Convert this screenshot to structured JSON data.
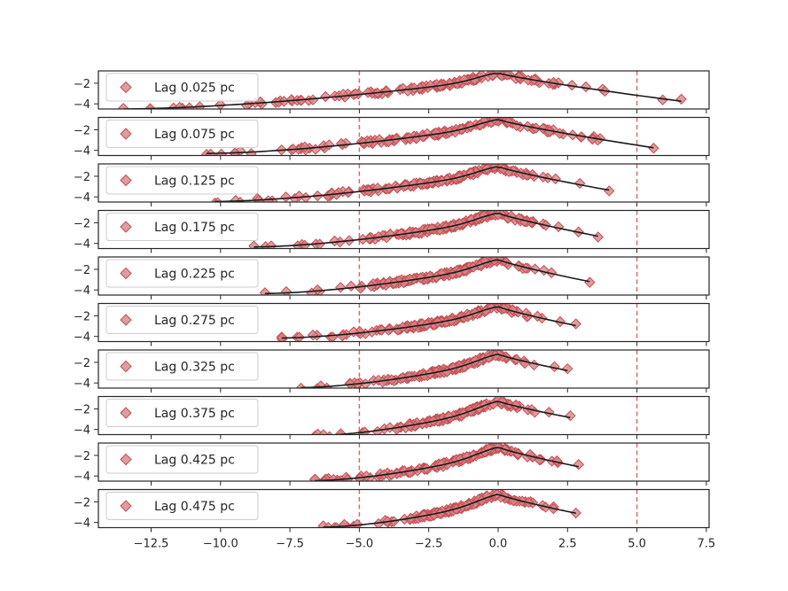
{
  "chart_data": {
    "type": "scatter",
    "title": "",
    "xlabel": "",
    "ylabel": "",
    "xlim": [
      -14.4,
      7.6
    ],
    "ylim": [
      -4.5,
      -0.8
    ],
    "x_ticks": [
      -12.5,
      -10.0,
      -7.5,
      -5.0,
      -2.5,
      0.0,
      2.5,
      5.0,
      7.5
    ],
    "x_tick_labels": [
      "−12.5",
      "−10.0",
      "−7.5",
      "−5.0",
      "−2.5",
      "0.0",
      "2.5",
      "5.0",
      "7.5"
    ],
    "y_ticks": [
      -2,
      -4
    ],
    "y_tick_labels": [
      "−2",
      "−4"
    ],
    "reference_lines_x": [
      -5.0,
      5.0
    ],
    "colors": {
      "marker_fill": "#d6868a",
      "marker_edge": "#c44e52",
      "fit_line": "#1a1a1a",
      "ref_line": "#d76b6b",
      "axes": "#262626"
    },
    "legend_marker": "diamond",
    "legend_position": "upper left",
    "panels": [
      {
        "label": "Lag 0.025 pc",
        "x_min": -13.5,
        "x_max": 6.6,
        "left_end": -4.5,
        "right_end": -3.75,
        "peak": -1.0
      },
      {
        "label": "Lag 0.075 pc",
        "x_min": -10.5,
        "x_max": 5.6,
        "left_end": -4.3,
        "right_end": -3.75,
        "peak": -1.0
      },
      {
        "label": "Lag 0.125 pc",
        "x_min": -10.2,
        "x_max": 4.0,
        "left_end": -4.45,
        "right_end": -3.35,
        "peak": -1.05
      },
      {
        "label": "Lag 0.175 pc",
        "x_min": -8.8,
        "x_max": 3.6,
        "left_end": -4.35,
        "right_end": -3.3,
        "peak": -1.05
      },
      {
        "label": "Lag 0.225 pc",
        "x_min": -8.4,
        "x_max": 3.3,
        "left_end": -4.35,
        "right_end": -3.2,
        "peak": -1.05
      },
      {
        "label": "Lag 0.275 pc",
        "x_min": -7.8,
        "x_max": 2.8,
        "left_end": -4.15,
        "right_end": -2.95,
        "peak": -1.1
      },
      {
        "label": "Lag 0.325 pc",
        "x_min": -7.1,
        "x_max": 2.5,
        "left_end": -4.45,
        "right_end": -2.8,
        "peak": -1.2
      },
      {
        "label": "Lag 0.375 pc",
        "x_min": -6.6,
        "x_max": 2.6,
        "left_end": -4.6,
        "right_end": -2.85,
        "peak": -1.25
      },
      {
        "label": "Lag 0.425 pc",
        "x_min": -6.6,
        "x_max": 2.9,
        "left_end": -4.45,
        "right_end": -3.1,
        "peak": -1.2
      },
      {
        "label": "Lag 0.475 pc",
        "x_min": -6.3,
        "x_max": 2.8,
        "left_end": -4.45,
        "right_end": -3.1,
        "peak": -1.25
      }
    ]
  }
}
